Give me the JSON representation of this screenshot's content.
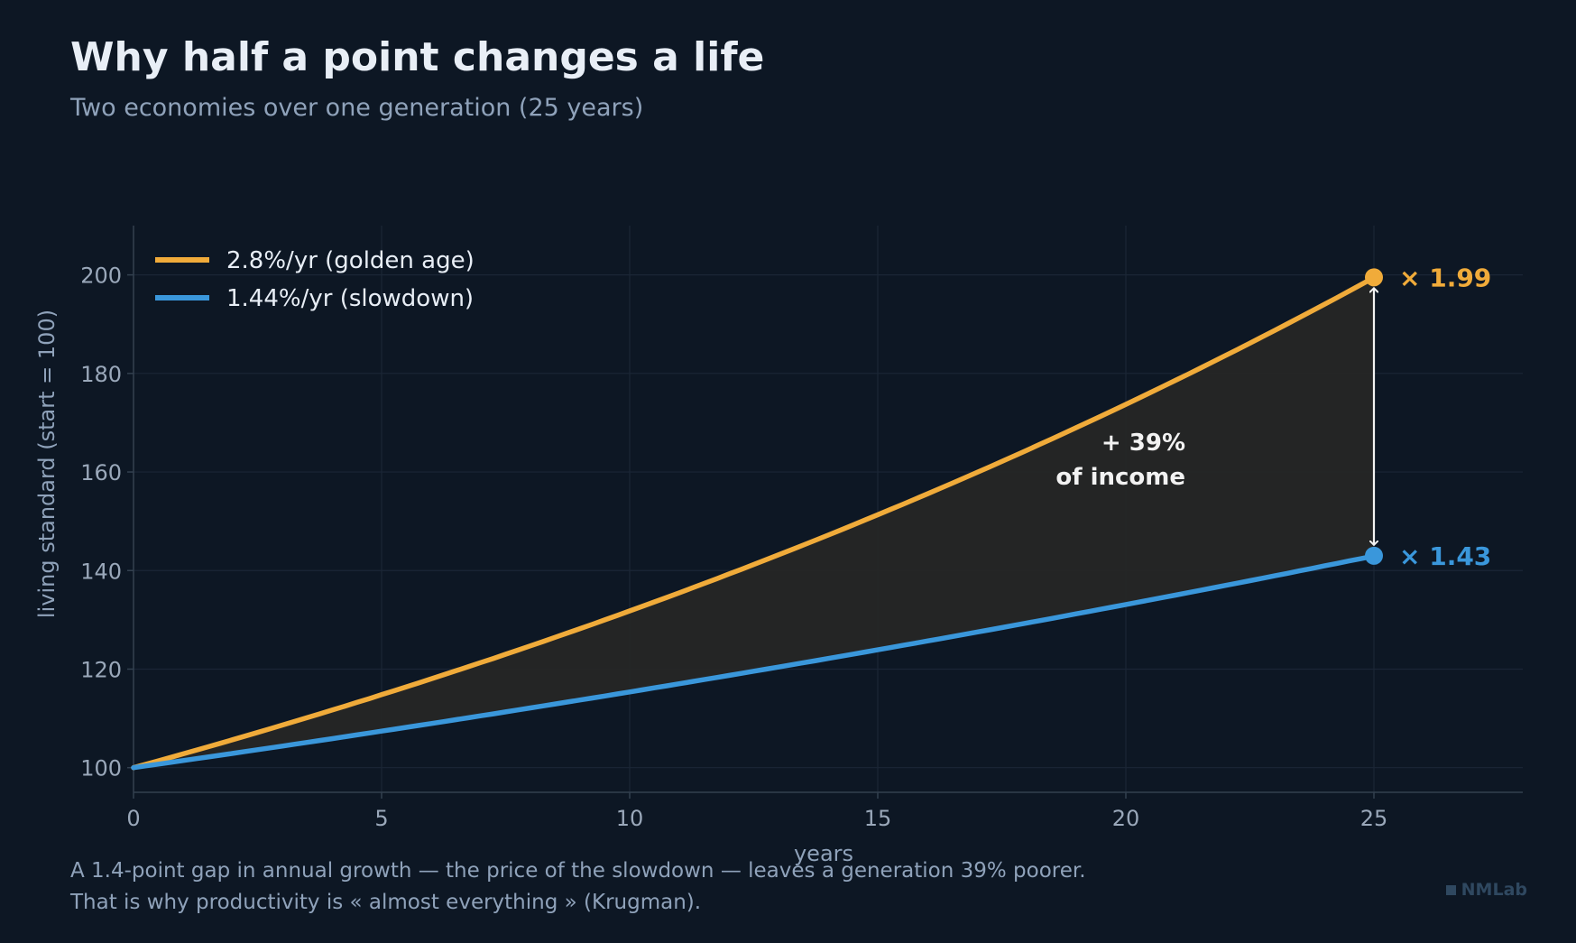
{
  "title": "Why half a point changes a life",
  "subtitle": "Two economies over one generation (25 years)",
  "caption": {
    "line1": "A 1.4-point gap in annual growth — the price of the slowdown — leaves a generation 39% poorer.",
    "line2": "That is why productivity is « almost everything » (Krugman)."
  },
  "brand": "NMLab",
  "chart_data": {
    "type": "line",
    "xlabel": "years",
    "ylabel": "living standard (start = 100)",
    "xlim": [
      0,
      28
    ],
    "ylim": [
      95,
      210
    ],
    "xticks": [
      0,
      5,
      10,
      15,
      20,
      25
    ],
    "yticks": [
      100,
      120,
      140,
      160,
      180,
      200
    ],
    "grid": true,
    "legend_position": "top-left",
    "series": [
      {
        "name": "2.8%/yr (golden age)",
        "color": "#f0ab3a",
        "rate": 0.028,
        "x": [
          0,
          5,
          10,
          15,
          20,
          25
        ],
        "y": [
          100,
          114.8,
          131.8,
          151.3,
          173.8,
          199.5
        ],
        "end_label": "× 1.99"
      },
      {
        "name": "1.44%/yr (slowdown)",
        "color": "#3a97db",
        "rate": 0.0144,
        "x": [
          0,
          5,
          10,
          15,
          20,
          25
        ],
        "y": [
          100,
          107.4,
          115.4,
          123.9,
          133.1,
          143.0
        ],
        "end_label": "× 1.43"
      }
    ],
    "fill_between": {
      "color": "#262626"
    },
    "annotation": {
      "line1": "+ 39%",
      "line2": "of income",
      "x": 21.2,
      "y": 167
    }
  }
}
